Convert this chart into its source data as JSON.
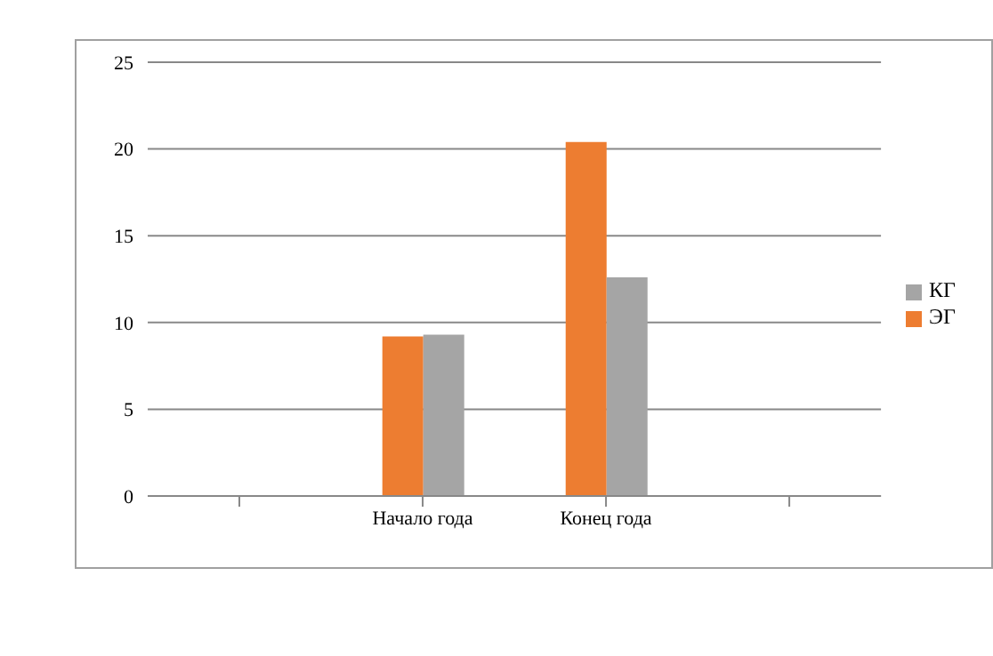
{
  "chart_data": {
    "type": "bar",
    "categories": [
      null,
      "Начало года",
      "Конец года",
      null
    ],
    "series": [
      {
        "name": "ЭГ",
        "color": "#ed7d31",
        "values": [
          null,
          9.2,
          20.4,
          null
        ]
      },
      {
        "name": "КГ",
        "color": "#a5a5a5",
        "values": [
          null,
          9.3,
          12.6,
          null
        ]
      }
    ],
    "ylim": [
      0,
      25
    ],
    "yticks": [
      0,
      5,
      10,
      15,
      20,
      25
    ],
    "grid": "y",
    "legend": "right"
  }
}
